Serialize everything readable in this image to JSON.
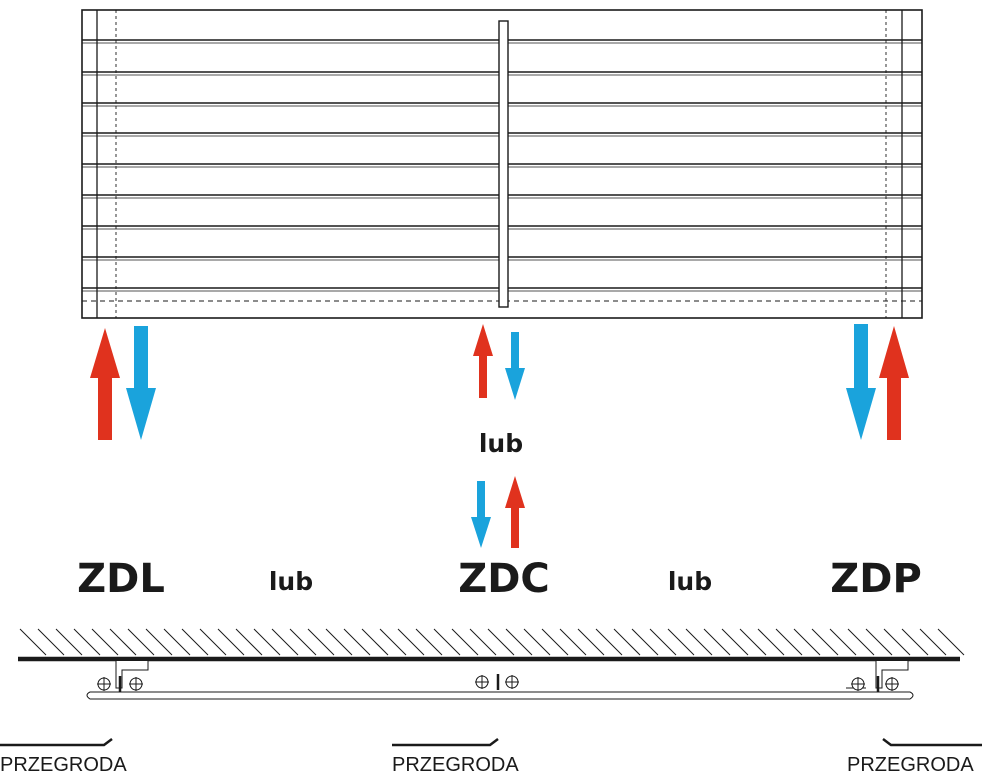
{
  "labels": {
    "zdl": "ZDL",
    "zdc": "ZDC",
    "zdp": "ZDP",
    "lub_center": "lub",
    "lub_left": "lub",
    "lub_right": "lub",
    "przegroda_left": "PRZEGRODA",
    "przegroda_center": "PRZEGRODA",
    "przegroda_right": "PRZEGRODA"
  },
  "colors": {
    "arrow_up": "#e0321e",
    "arrow_down": "#1aa3dc",
    "line": "#1a1a1a"
  },
  "icons": {
    "blind": "horizontal-blind-drawing",
    "arrow_up": "red-up-arrow",
    "arrow_down": "blue-down-arrow",
    "bracket": "mounting-bracket-icon"
  }
}
